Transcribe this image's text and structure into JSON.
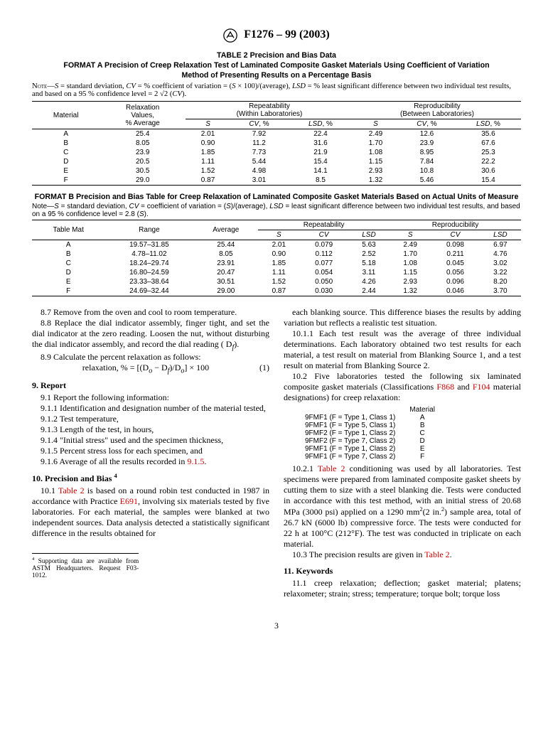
{
  "header": {
    "standard": "F1276 – 99 (2003)"
  },
  "table2": {
    "title1": "TABLE 2  Precision and Bias Data",
    "title2": "FORMAT A   Precision of Creep Relaxation Test of Laminated Composite Gasket Materials Using Coefficient of Variation",
    "title3": "Method of Presenting Results on a Percentage Basis",
    "noteA": "NOTE—S = standard deviation, CV = % coefficient of variation = (S × 100)/(average), LSD = % least significant difference between two individual test results, and based on a 95 % confidence level = 2 √2 (CV).",
    "colsA": {
      "c1": "Material",
      "c2": "Relaxation Values, % Average",
      "c3": "Repeatability (Within Laboratories)",
      "c4": "Reproducibility (Between Laboratories)",
      "sub_s": "S",
      "sub_cv": "CV, %",
      "sub_lsd": "LSD, %"
    },
    "rowsA": [
      {
        "m": "A",
        "avg": "25.4",
        "rs": "2.01",
        "rcv": "7.92",
        "rlsd": "22.4",
        "ps": "2.49",
        "pcv": "12.6",
        "plsd": "35.6"
      },
      {
        "m": "B",
        "avg": "8.05",
        "rs": "0.90",
        "rcv": "11.2",
        "rlsd": "31.6",
        "ps": "1.70",
        "pcv": "23.9",
        "plsd": "67.6"
      },
      {
        "m": "C",
        "avg": "23.9",
        "rs": "1.85",
        "rcv": "7.73",
        "rlsd": "21.9",
        "ps": "1.08",
        "pcv": "8.95",
        "plsd": "25.3"
      },
      {
        "m": "D",
        "avg": "20.5",
        "rs": "1.11",
        "rcv": "5.44",
        "rlsd": "15.4",
        "ps": "1.15",
        "pcv": "7.84",
        "plsd": "22.2"
      },
      {
        "m": "E",
        "avg": "30.5",
        "rs": "1.52",
        "rcv": "4.98",
        "rlsd": "14.1",
        "ps": "2.93",
        "pcv": "10.8",
        "plsd": "30.6"
      },
      {
        "m": "F",
        "avg": "29.0",
        "rs": "0.87",
        "rcv": "3.01",
        "rlsd": "8.5",
        "ps": "1.32",
        "pcv": "5.46",
        "plsd": "15.4"
      }
    ],
    "titleB": "FORMAT B   Precision and Bias Table for Creep Relaxation of Laminated Composite Gasket Materials Based on Actual Units of Measure",
    "noteB": "Note—S = standard deviation, CV = coefficient of variation = (S)/(average), LSD  = least significant difference between two individual test results, and based on a 95 % confidence level = 2.8 (S).",
    "colsB": {
      "c1": "Table Mat",
      "c2": "Range",
      "c3": "Average",
      "c4": "Repeatability",
      "c5": "Reproducibility",
      "sub_s": "S",
      "sub_cv": "CV",
      "sub_lsd": "LSD"
    },
    "rowsB": [
      {
        "m": "A",
        "r": "19.57–31.85",
        "avg": "25.44",
        "rs": "2.01",
        "rcv": "0.079",
        "rlsd": "5.63",
        "ps": "2.49",
        "pcv": "0.098",
        "plsd": "6.97"
      },
      {
        "m": "B",
        "r": "4.78–11.02",
        "avg": "8.05",
        "rs": "0.90",
        "rcv": "0.112",
        "rlsd": "2.52",
        "ps": "1.70",
        "pcv": "0.211",
        "plsd": "4.76"
      },
      {
        "m": "C",
        "r": "18.24–29.74",
        "avg": "23.91",
        "rs": "1.85",
        "rcv": "0.077",
        "rlsd": "5.18",
        "ps": "1.08",
        "pcv": "0.045",
        "plsd": "3.02"
      },
      {
        "m": "D",
        "r": "16.80–24.59",
        "avg": "20.47",
        "rs": "1.11",
        "rcv": "0.054",
        "rlsd": "3.11",
        "ps": "1.15",
        "pcv": "0.056",
        "plsd": "3.22"
      },
      {
        "m": "E",
        "r": "23.33–38.64",
        "avg": "30.51",
        "rs": "1.52",
        "rcv": "0.050",
        "rlsd": "4.26",
        "ps": "2.93",
        "pcv": "0.096",
        "plsd": "8.20"
      },
      {
        "m": "F",
        "r": "24.69–32.44",
        "avg": "29.00",
        "rs": "0.87",
        "rcv": "0.030",
        "rlsd": "2.44",
        "ps": "1.32",
        "pcv": "0.046",
        "plsd": "3.70"
      }
    ]
  },
  "body": {
    "p87": "8.7 Remove from the oven and cool to room temperature.",
    "p88": "8.8 Replace the dial indicator assembly, finger tight, and set the dial indicator at the zero reading. Loosen the nut, without disturbing the dial indicator assembly, and record the dial reading ( D",
    "p88b": ").",
    "p89": "8.9 Calculate the percent relaxation as follows:",
    "formula": "relaxation, % = [(D",
    "formula2": " − D",
    "formula3": ")/D",
    "formula4": "] × 100",
    "formula_num": "(1)",
    "h9": "9. Report",
    "p91": "9.1 Report the following information:",
    "p911": "9.1.1 Identification and designation number of the material tested,",
    "p912": "9.1.2 Test temperature,",
    "p913": "9.1.3 Length of the test, in hours,",
    "p914": "9.1.4 \"Initial stress\" used and the specimen thickness,",
    "p915": "9.1.5 Percent stress loss for each specimen, and",
    "p916": "9.1.6 Average of all the results recorded in ",
    "p916ref": "9.1.5",
    "h10": "10. Precision and Bias ",
    "p101a": "10.1 ",
    "p101ref": "Table 2",
    "p101b": " is based on a round robin test conducted in 1987 in accordance with Practice ",
    "p101ref2": "E691",
    "p101c": ", involving six materials tested by five laboratories. For each material, the samples were blanked at two independent sources. Data analysis detected a statistically significant difference in the results obtained for",
    "p101d": "each blanking source. This difference biases the results by adding variation but reflects a realistic test situation.",
    "p1011": "10.1.1 Each test result was the average of three individual determinations. Each laboratory obtained two test results for each material, a test result on material from Blanking Source 1, and a test result on material from Blanking Source 2.",
    "p102a": "10.2 Five laboratories tested the following six laminated composite gasket materials (Classifications ",
    "p102ref1": "F868",
    "p102b": " and ",
    "p102ref2": "F104",
    "p102c": " material designations) for creep relaxation:",
    "mat_header": "Material",
    "materials": [
      {
        "desc": "9FMF1 (F = Type 1, Class 1)",
        "m": "A"
      },
      {
        "desc": "9FMF1 (F = Type 5, Class 1)",
        "m": "B"
      },
      {
        "desc": "9FMF2 (F = Type 1, Class 2)",
        "m": "C"
      },
      {
        "desc": "9FMF2 (F = Type 7, Class 2)",
        "m": "D"
      },
      {
        "desc": "9FMF1 (F = Type 1, Class 2)",
        "m": "E"
      },
      {
        "desc": "9FMF1 (F = Type 7, Class 2)",
        "m": "F"
      }
    ],
    "p1021a": "10.2.1 ",
    "p1021ref": "Table 2",
    "p1021b": " conditioning was used by all laboratories. Test specimens were prepared from laminated composite gasket sheets by cutting them to size with a steel blanking die. Tests were conducted in accordance with this test method, with an initial stress of 20.68 MPa (3000 psi) applied on a 1290 mm",
    "p1021c": "(2 in.",
    "p1021d": ") sample area, total of 26.7 kN (6000 lb) compressive force. The tests were conducted for 22 h at 100°C (212°F). The test was conducted in triplicate on each material.",
    "p103a": "10.3 The precision results are given in ",
    "p103ref": "Table 2",
    "h11": "11. Keywords",
    "p111": "11.1 creep relaxation; deflection; gasket material; platens; relaxometer; strain; stress; temperature; torque bolt; torque loss",
    "footnote": "Supporting data are available from ASTM Headquarters. Request F03-1012.",
    "pagenum": "3"
  }
}
